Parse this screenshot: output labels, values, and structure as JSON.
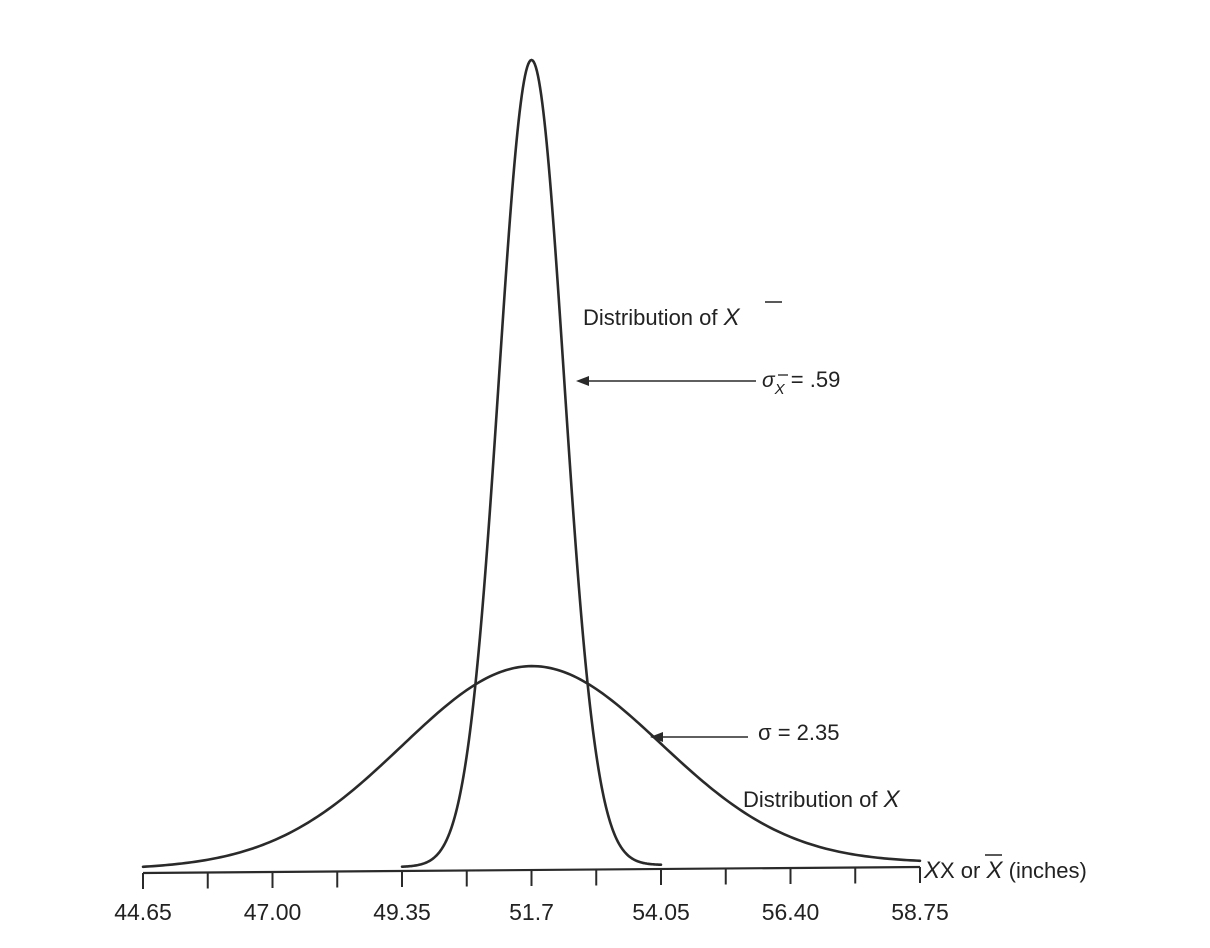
{
  "chart_data": {
    "type": "line",
    "x_ticks": [
      44.65,
      45.825,
      47.0,
      48.175,
      49.35,
      50.525,
      51.7,
      52.875,
      54.05,
      55.225,
      56.4,
      57.575,
      58.75
    ],
    "tick_labels": [
      "44.65",
      "47.00",
      "49.35",
      "51.7",
      "54.05",
      "56.40",
      "58.75"
    ],
    "tick_label_values": [
      44.65,
      47.0,
      49.35,
      51.7,
      54.05,
      56.4,
      58.75
    ],
    "xlim": [
      44.65,
      58.75
    ],
    "xlabel": {
      "prefix": "X or ",
      "xbar": "X",
      "suffix": " (inches)"
    },
    "series": [
      {
        "name": "Distribution of X",
        "mean": 51.7,
        "sd": 2.35,
        "x_range": [
          44.65,
          58.75
        ],
        "peak_relative_height": 0.248
      },
      {
        "name": "Distribution of X̄",
        "mean": 51.7,
        "sd": 0.59,
        "x_range": [
          49.35,
          54.05
        ],
        "peak_relative_height": 1.0
      }
    ],
    "annotations": {
      "xbar_dist": {
        "text": "Distribution of ",
        "symbol": "X"
      },
      "sigma_xbar": {
        "sym": "σ",
        "sub": "X",
        "value": " = .59"
      },
      "sigma": {
        "text": "σ = 2.35"
      },
      "x_dist": {
        "text": "Distribution of ",
        "symbol": "X"
      }
    }
  }
}
